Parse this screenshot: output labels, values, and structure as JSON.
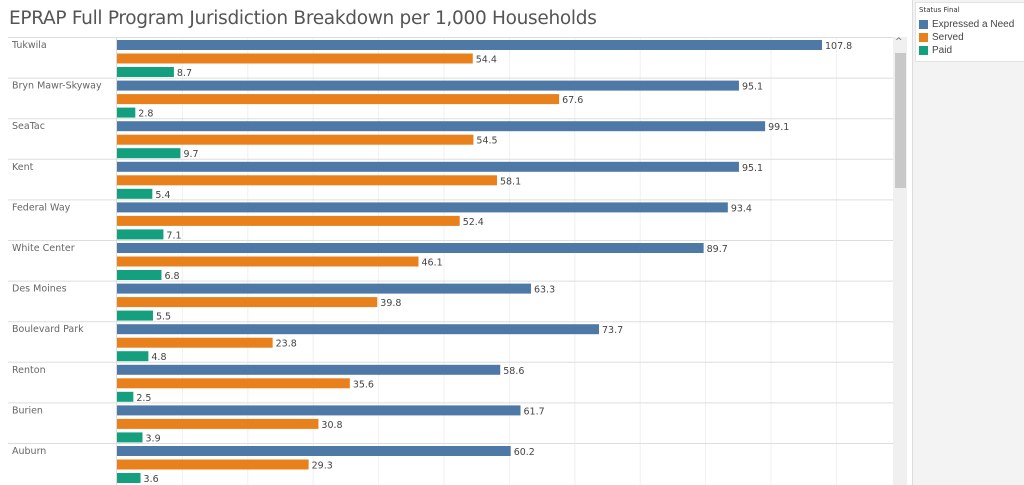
{
  "title": "EPRAP Full Program Jurisdiction Breakdown per 1,000 Households",
  "legend": {
    "title": "Status Final",
    "items": [
      {
        "label": "Expressed a Need",
        "color": "#4e79a7"
      },
      {
        "label": "Served",
        "color": "#e8801c"
      },
      {
        "label": "Paid",
        "color": "#14a07f"
      }
    ]
  },
  "chart_data": {
    "type": "bar",
    "orientation": "horizontal",
    "title": "EPRAP Full Program Jurisdiction Breakdown per 1,000 Households",
    "categories": [
      "Tukwila",
      "Bryn Mawr-Skyway",
      "SeaTac",
      "Kent",
      "Federal Way",
      "White Center",
      "Des Moines",
      "Boulevard Park",
      "Renton",
      "Burien",
      "Auburn"
    ],
    "series": [
      {
        "name": "Expressed a Need",
        "color": "#4e79a7",
        "values": [
          107.8,
          95.1,
          99.1,
          95.1,
          93.4,
          89.7,
          63.3,
          73.7,
          58.6,
          61.7,
          60.2
        ]
      },
      {
        "name": "Served",
        "color": "#e8801c",
        "values": [
          54.4,
          67.6,
          54.5,
          58.1,
          52.4,
          46.1,
          39.8,
          23.8,
          35.6,
          30.8,
          29.3
        ]
      },
      {
        "name": "Paid",
        "color": "#14a07f",
        "values": [
          8.7,
          2.8,
          9.7,
          5.4,
          7.1,
          6.8,
          5.5,
          4.8,
          2.5,
          3.9,
          3.6
        ]
      }
    ],
    "xlim": [
      0,
      118
    ],
    "grid": true,
    "legend_position": "right"
  }
}
